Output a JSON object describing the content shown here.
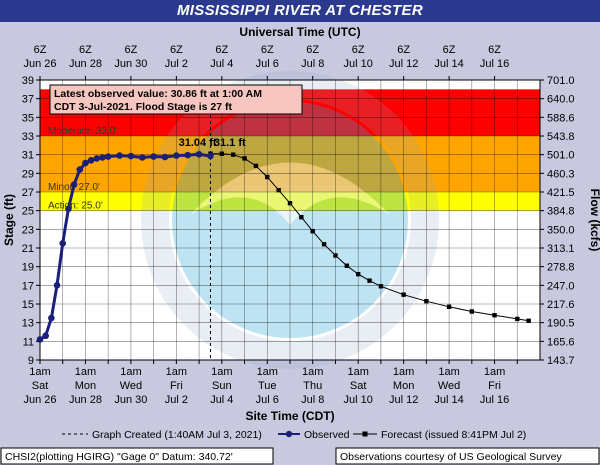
{
  "page": {
    "title": "MISSISSIPPI RIVER AT CHESTER",
    "top_axis_title": "Universal Time (UTC)",
    "bottom_axis_title": "Site Time (CDT)",
    "footer_left": "CHSI2(plotting HGIRG) \"Gage 0\" Datum: 340.72'",
    "footer_right": "Observations courtesy of US Geological Survey"
  },
  "chart_data": {
    "type": "line",
    "title": "MISSISSIPPI RIVER AT CHESTER",
    "xlabel": "Site Time (CDT)",
    "xlabel_top": "Universal Time (UTC)",
    "ylabel": "Stage (ft)",
    "ylabel_right": "Flow (kcfs)",
    "ylim": [
      9,
      39
    ],
    "y_ticks": [
      9,
      11,
      13,
      15,
      17,
      19,
      21,
      23,
      25,
      27,
      29,
      31,
      33,
      35,
      37,
      39
    ],
    "right_ticks": [
      {
        "stage": 9,
        "label": "143.7"
      },
      {
        "stage": 11,
        "label": "165.6"
      },
      {
        "stage": 13,
        "label": "190.5"
      },
      {
        "stage": 15,
        "label": "217.6"
      },
      {
        "stage": 17,
        "label": "247.0"
      },
      {
        "stage": 19,
        "label": "278.8"
      },
      {
        "stage": 21,
        "label": "313.1"
      },
      {
        "stage": 23,
        "label": "350.0"
      },
      {
        "stage": 25,
        "label": "384.8"
      },
      {
        "stage": 27,
        "label": "421.5"
      },
      {
        "stage": 29,
        "label": "460.3"
      },
      {
        "stage": 31,
        "label": "501.0"
      },
      {
        "stage": 33,
        "label": "543.8"
      },
      {
        "stage": 35,
        "label": "588.6"
      },
      {
        "stage": 37,
        "label": "640.0"
      },
      {
        "stage": 39,
        "label": "701.0"
      }
    ],
    "x_range_days": [
      0,
      22
    ],
    "bottom_ticks": [
      {
        "day": 0,
        "time": "1am",
        "dow": "Sat",
        "date": "Jun 26"
      },
      {
        "day": 1,
        "time": "1am",
        "dow": "",
        "date": ""
      },
      {
        "day": 2,
        "time": "1am",
        "dow": "Mon",
        "date": "Jun 28"
      },
      {
        "day": 3,
        "time": "1am",
        "dow": "",
        "date": ""
      },
      {
        "day": 4,
        "time": "1am",
        "dow": "Wed",
        "date": "Jun 30"
      },
      {
        "day": 5,
        "time": "1am",
        "dow": "",
        "date": ""
      },
      {
        "day": 6,
        "time": "1am",
        "dow": "Fri",
        "date": "Jul 2"
      },
      {
        "day": 7,
        "time": "1am",
        "dow": "",
        "date": ""
      },
      {
        "day": 8,
        "time": "1am",
        "dow": "Sun",
        "date": "Jul 4"
      },
      {
        "day": 9,
        "time": "1am",
        "dow": "",
        "date": ""
      },
      {
        "day": 10,
        "time": "1am",
        "dow": "Tue",
        "date": "Jul 6"
      },
      {
        "day": 11,
        "time": "1am",
        "dow": "",
        "date": ""
      },
      {
        "day": 12,
        "time": "1am",
        "dow": "Thu",
        "date": "Jul 8"
      },
      {
        "day": 13,
        "time": "1am",
        "dow": "",
        "date": ""
      },
      {
        "day": 14,
        "time": "1am",
        "dow": "Sat",
        "date": "Jul 10"
      },
      {
        "day": 15,
        "time": "1am",
        "dow": "",
        "date": ""
      },
      {
        "day": 16,
        "time": "1am",
        "dow": "Mon",
        "date": "Jul 12"
      },
      {
        "day": 17,
        "time": "1am",
        "dow": "",
        "date": ""
      },
      {
        "day": 18,
        "time": "1am",
        "dow": "Wed",
        "date": "Jul 14"
      },
      {
        "day": 19,
        "time": "1am",
        "dow": "",
        "date": ""
      },
      {
        "day": 20,
        "time": "1am",
        "dow": "Fri",
        "date": "Jul 16"
      },
      {
        "day": 21,
        "time": "1am",
        "dow": "",
        "date": ""
      }
    ],
    "top_ticks": [
      {
        "day": 0,
        "time": "6Z",
        "date": "Jun 26"
      },
      {
        "day": 2,
        "time": "6Z",
        "date": "Jun 28"
      },
      {
        "day": 4,
        "time": "6Z",
        "date": "Jun 30"
      },
      {
        "day": 6,
        "time": "6Z",
        "date": "Jul 2"
      },
      {
        "day": 8,
        "time": "6Z",
        "date": "Jul 4"
      },
      {
        "day": 10,
        "time": "6Z",
        "date": "Jul 6"
      },
      {
        "day": 12,
        "time": "6Z",
        "date": "Jul 8"
      },
      {
        "day": 14,
        "time": "6Z",
        "date": "Jul 10"
      },
      {
        "day": 16,
        "time": "6Z",
        "date": "Jul 12"
      },
      {
        "day": 18,
        "time": "6Z",
        "date": "Jul 14"
      },
      {
        "day": 20,
        "time": "6Z",
        "date": "Jul 16"
      }
    ],
    "flood_bands": [
      {
        "name": "Action",
        "label": "Action: 25.0'",
        "from": 25,
        "to": 27,
        "color": "#ffff00"
      },
      {
        "name": "Minor",
        "label": "Minor: 27.0'",
        "from": 27,
        "to": 33,
        "color": "#ffa500"
      },
      {
        "name": "Moderate",
        "label": "Moderate: 33.0'",
        "from": 33,
        "to": 38,
        "color": "#ff0000"
      }
    ],
    "graph_created_day": 7.5,
    "info_box": {
      "line1": "Latest observed value: 30.86 ft at 1:00 AM",
      "line2": "CDT 3-Jul-2021. Flood Stage is 27 ft"
    },
    "annotations": [
      {
        "text": "31.04 ft",
        "day": 6.1,
        "stage": 31.6
      },
      {
        "text": "31.1 ft",
        "day": 7.65,
        "stage": 31.6
      }
    ],
    "series": [
      {
        "name": "Observed",
        "x": [
          0,
          0.25,
          0.5,
          0.75,
          1.0,
          1.25,
          1.5,
          1.75,
          2.0,
          2.25,
          2.5,
          2.75,
          3.0,
          3.5,
          4.0,
          4.5,
          5.0,
          5.5,
          6.0,
          6.5,
          7.0,
          7.5
        ],
        "y": [
          11.2,
          11.6,
          13.5,
          17.0,
          21.5,
          25.2,
          27.8,
          29.4,
          30.1,
          30.4,
          30.6,
          30.7,
          30.8,
          30.9,
          30.85,
          30.7,
          30.8,
          30.75,
          30.9,
          30.95,
          31.04,
          30.86
        ]
      },
      {
        "name": "Forecast (issued 8:41PM Jul 2)",
        "x": [
          7.5,
          8.0,
          8.5,
          9.0,
          9.5,
          10.0,
          10.5,
          11.0,
          11.5,
          12.0,
          12.5,
          13.0,
          13.5,
          14.0,
          14.5,
          15.0,
          16.0,
          17.0,
          18.0,
          19.0,
          20.0,
          21.0,
          21.5
        ],
        "y": [
          31.1,
          31.1,
          31.0,
          30.6,
          29.8,
          28.6,
          27.2,
          25.8,
          24.3,
          22.8,
          21.4,
          20.2,
          19.1,
          18.2,
          17.5,
          16.9,
          16.0,
          15.3,
          14.7,
          14.2,
          13.8,
          13.4,
          13.2
        ]
      }
    ],
    "legend": {
      "graph_created": "Graph Created (1:40AM Jul 3, 2021)",
      "observed": "Observed",
      "forecast": "Forecast (issued 8:41PM Jul 2)"
    },
    "colors": {
      "observed": "#1b1f7a",
      "forecast": "#000000",
      "plot_background": "#ffffff",
      "frame": "#c8c8de",
      "title_bar": "#2b3a8e"
    }
  }
}
